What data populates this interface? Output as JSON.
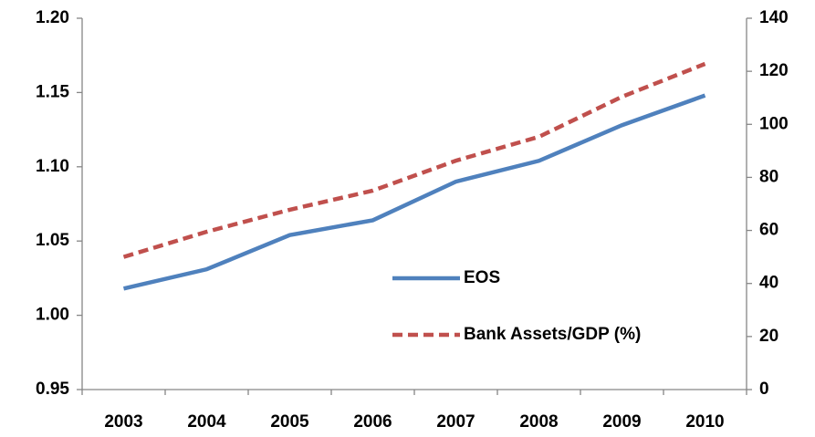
{
  "chart_data": {
    "type": "line",
    "categories": [
      "2003",
      "2004",
      "2005",
      "2006",
      "2007",
      "2008",
      "2009",
      "2010"
    ],
    "series": [
      {
        "name": "EOS",
        "color": "#4f81bd",
        "dash": false,
        "values": [
          1.018,
          1.031,
          1.054,
          1.064,
          1.09,
          1.104,
          1.128,
          1.148
        ]
      },
      {
        "name": "Bank Assets/GDP (%)",
        "color": "#c0504d",
        "dash": true,
        "axis": "y2",
        "values": [
          50,
          59.5,
          67.8,
          75,
          86.3,
          95.3,
          110.4,
          122.8
        ]
      }
    ],
    "ylim": [
      0.95,
      1.2
    ],
    "yticks": [
      0.95,
      {
        "value": 1,
        "label": "1.00"
      },
      1.05,
      {
        "value": 1.1,
        "label": "1.10"
      },
      1.15,
      {
        "value": 1.2,
        "label": "1.20"
      }
    ],
    "y2lim": [
      0,
      140
    ],
    "y2ticks": [
      0,
      20,
      40,
      60,
      80,
      100,
      120,
      140
    ],
    "grid": false,
    "legend": "center"
  }
}
